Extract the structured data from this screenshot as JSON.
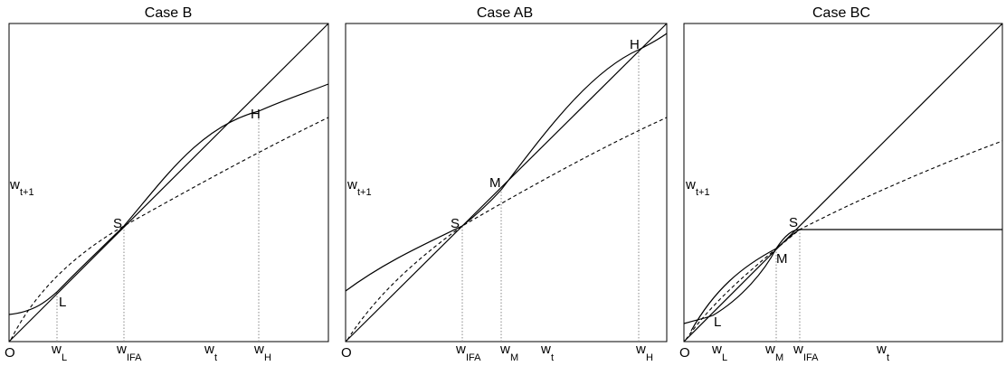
{
  "panels": [
    {
      "title": "Case B",
      "ylabel": "w",
      "ylabel_sub": "t+1",
      "points": {
        "S": "S",
        "L": "L",
        "H": "H"
      },
      "origin": "O",
      "xticks": [
        {
          "base": "w",
          "sub": "L"
        },
        {
          "base": "w",
          "sub": "IFA"
        },
        {
          "base": "w",
          "sub": "t"
        },
        {
          "base": "w",
          "sub": "H"
        }
      ]
    },
    {
      "title": "Case AB",
      "ylabel": "w",
      "ylabel_sub": "t+1",
      "points": {
        "S": "S",
        "M": "M",
        "H": "H"
      },
      "origin": "O",
      "xticks": [
        {
          "base": "w",
          "sub": "IFA"
        },
        {
          "base": "w",
          "sub": "M"
        },
        {
          "base": "w",
          "sub": "t"
        },
        {
          "base": "w",
          "sub": "H"
        }
      ]
    },
    {
      "title": "Case BC",
      "ylabel": "w",
      "ylabel_sub": "t+1",
      "points": {
        "S": "S",
        "M": "M",
        "L": "L"
      },
      "origin": "O",
      "xticks": [
        {
          "base": "w",
          "sub": "L"
        },
        {
          "base": "w",
          "sub": "M"
        },
        {
          "base": "w",
          "sub": "IFA"
        },
        {
          "base": "w",
          "sub": "t"
        }
      ]
    }
  ]
}
